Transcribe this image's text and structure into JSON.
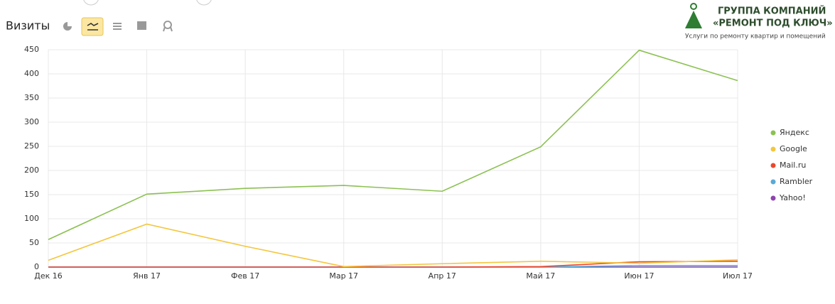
{
  "chart_data": {
    "type": "line",
    "title": "Визиты",
    "categories": [
      "Дек 16",
      "Янв 17",
      "Фев 17",
      "Мар 17",
      "Апр 17",
      "Май 17",
      "Июн 17",
      "Июл 17"
    ],
    "series": [
      {
        "name": "Яндекс",
        "color": "#8cc152",
        "values": [
          57,
          151,
          163,
          169,
          157,
          249,
          449,
          386
        ]
      },
      {
        "name": "Google",
        "color": "#f4c63d",
        "values": [
          14,
          89,
          43,
          1,
          7,
          12,
          8,
          15
        ]
      },
      {
        "name": "Mail.ru",
        "color": "#e8492f",
        "values": [
          0,
          0,
          0,
          0,
          0,
          1,
          11,
          12
        ]
      },
      {
        "name": "Rambler",
        "color": "#5aa9d6",
        "values": [
          0,
          0,
          0,
          0,
          0,
          0,
          3,
          3
        ]
      },
      {
        "name": "Yahoo!",
        "color": "#8e44ad",
        "values": [
          0,
          0,
          0,
          0,
          0,
          0,
          0,
          0
        ]
      }
    ],
    "ylim": [
      0,
      450
    ],
    "yticks": [
      0,
      50,
      100,
      150,
      200,
      250,
      300,
      350,
      400,
      450
    ],
    "grid": true,
    "legend": "right"
  },
  "logo": {
    "line1": "ГРУППА КОМПАНИЙ",
    "line2": "«РЕМОНТ ПОД КЛЮЧ»",
    "line3": "Услуги по ремонту квартир и помещений"
  }
}
